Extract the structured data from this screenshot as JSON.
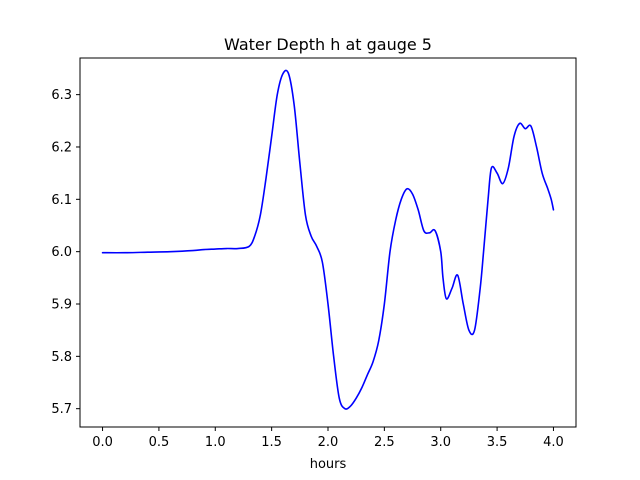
{
  "chart_data": {
    "type": "line",
    "title": "Water Depth h at gauge 5",
    "xlabel": "hours",
    "ylabel": "",
    "xlim": [
      -0.2,
      4.2
    ],
    "ylim": [
      5.665,
      6.37
    ],
    "xticks": [
      0.0,
      0.5,
      1.0,
      1.5,
      2.0,
      2.5,
      3.0,
      3.5,
      4.0
    ],
    "xtick_labels": [
      "0.0",
      "0.5",
      "1.0",
      "1.5",
      "2.0",
      "2.5",
      "3.0",
      "3.5",
      "4.0"
    ],
    "yticks": [
      5.7,
      5.8,
      5.9,
      6.0,
      6.1,
      6.2,
      6.3
    ],
    "ytick_labels": [
      "5.7",
      "5.8",
      "5.9",
      "6.0",
      "6.1",
      "6.2",
      "6.3"
    ],
    "grid": false,
    "series": [
      {
        "color": "#0000ff",
        "x": [
          0.0,
          0.2,
          0.4,
          0.6,
          0.8,
          0.9,
          1.0,
          1.1,
          1.2,
          1.3,
          1.35,
          1.4,
          1.45,
          1.5,
          1.55,
          1.6,
          1.65,
          1.7,
          1.75,
          1.8,
          1.85,
          1.9,
          1.95,
          2.0,
          2.05,
          2.1,
          2.15,
          2.2,
          2.25,
          2.3,
          2.35,
          2.4,
          2.45,
          2.5,
          2.55,
          2.6,
          2.65,
          2.7,
          2.75,
          2.8,
          2.85,
          2.9,
          2.95,
          3.0,
          3.02,
          3.05,
          3.1,
          3.15,
          3.2,
          3.25,
          3.3,
          3.35,
          3.38,
          3.42,
          3.45,
          3.5,
          3.55,
          3.6,
          3.65,
          3.7,
          3.75,
          3.8,
          3.85,
          3.9,
          3.95,
          3.98,
          4.0
        ],
        "y": [
          5.998,
          5.998,
          5.999,
          6.0,
          6.002,
          6.004,
          6.005,
          6.006,
          6.006,
          6.01,
          6.03,
          6.07,
          6.14,
          6.22,
          6.3,
          6.34,
          6.34,
          6.28,
          6.17,
          6.07,
          6.03,
          6.01,
          5.98,
          5.9,
          5.8,
          5.72,
          5.7,
          5.705,
          5.72,
          5.74,
          5.765,
          5.79,
          5.83,
          5.9,
          6.0,
          6.06,
          6.1,
          6.12,
          6.11,
          6.08,
          6.04,
          6.036,
          6.04,
          6.0,
          5.95,
          5.91,
          5.93,
          5.955,
          5.9,
          5.85,
          5.85,
          5.93,
          6.0,
          6.1,
          6.16,
          6.15,
          6.13,
          6.16,
          6.22,
          6.245,
          6.235,
          6.24,
          6.2,
          6.15,
          6.12,
          6.1,
          6.08
        ]
      }
    ]
  }
}
